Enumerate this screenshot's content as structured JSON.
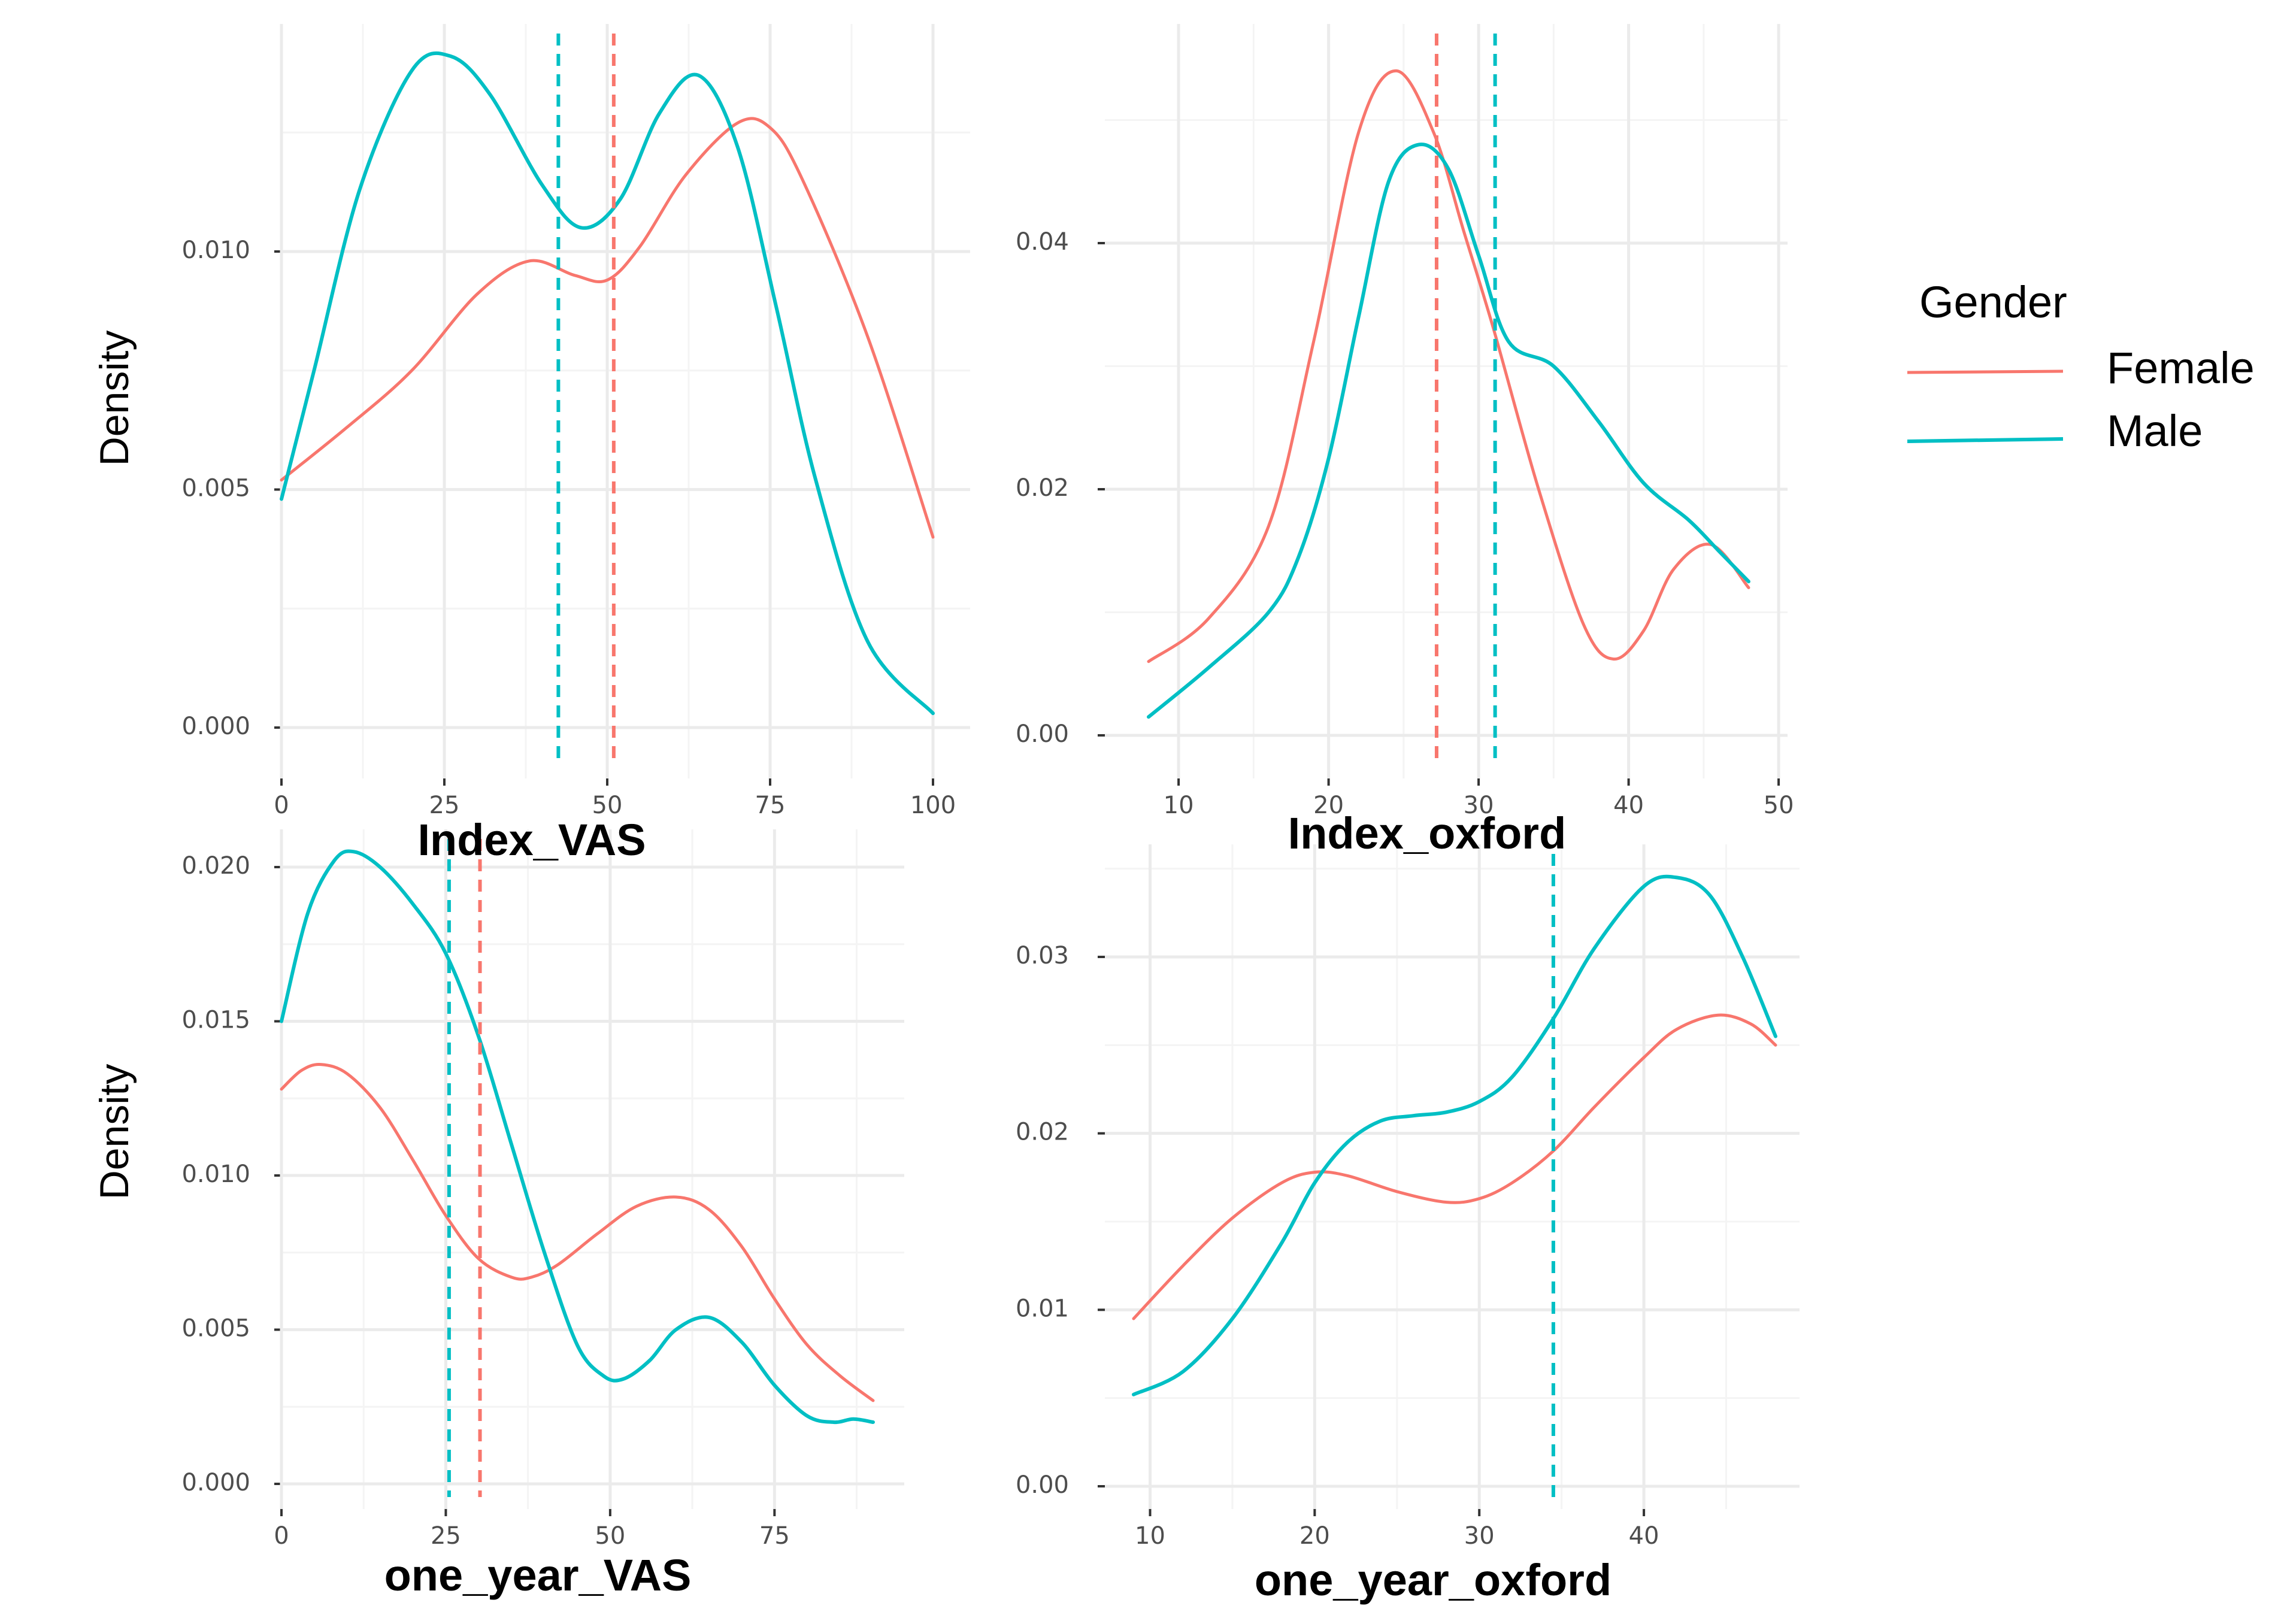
{
  "legend": {
    "title": "Gender",
    "items": [
      {
        "label": "Female",
        "color": "#F8766D"
      },
      {
        "label": "Male",
        "color": "#00BFC4"
      }
    ]
  },
  "chart_data": [
    {
      "type": "line",
      "title": "",
      "xlabel": "Index_VAS",
      "ylabel": "Density",
      "xlim": [
        0,
        100
      ],
      "ylim": [
        0.0,
        0.0143
      ],
      "xticks": [
        0,
        25,
        50,
        75,
        100
      ],
      "xtick_labels": [
        "0",
        "25",
        "50",
        "75",
        "100"
      ],
      "yticks": [
        0.0,
        0.005,
        0.01
      ],
      "ytick_labels": [
        "0.000",
        "0.005",
        "0.010"
      ],
      "grid": true,
      "series": [
        {
          "name": "Female",
          "color": "#F8766D",
          "x": [
            0,
            10,
            20,
            30,
            38,
            45,
            50,
            55,
            62,
            70,
            75,
            80,
            90,
            100
          ],
          "y": [
            0.0052,
            0.0063,
            0.0075,
            0.0091,
            0.0098,
            0.0095,
            0.0094,
            0.0101,
            0.0116,
            0.0127,
            0.0126,
            0.0115,
            0.0082,
            0.004
          ]
        },
        {
          "name": "Male",
          "color": "#00BFC4",
          "x": [
            0,
            5,
            12,
            20,
            26,
            32,
            40,
            46,
            52,
            58,
            64,
            70,
            76,
            82,
            90,
            100
          ],
          "y": [
            0.0048,
            0.0075,
            0.0113,
            0.0138,
            0.0141,
            0.0133,
            0.0114,
            0.0105,
            0.0111,
            0.0129,
            0.0137,
            0.0122,
            0.0088,
            0.0052,
            0.0018,
            0.0003
          ]
        }
      ],
      "vlines": [
        {
          "series": "Male",
          "x": 42.5,
          "color": "#00BFC4"
        },
        {
          "series": "Female",
          "x": 51,
          "color": "#F8766D"
        }
      ]
    },
    {
      "type": "line",
      "title": "",
      "xlabel": "Index_oxford",
      "ylabel": "",
      "xlim": [
        8,
        48
      ],
      "ylim": [
        0.0,
        0.056
      ],
      "xticks": [
        10,
        20,
        30,
        40,
        50
      ],
      "xtick_labels": [
        "10",
        "20",
        "30",
        "40",
        "50"
      ],
      "yticks": [
        0.0,
        0.02,
        0.04
      ],
      "ytick_labels": [
        "0.00",
        "0.02",
        "0.04"
      ],
      "grid": true,
      "series": [
        {
          "name": "Female",
          "color": "#F8766D",
          "x": [
            8,
            12,
            16,
            19,
            22,
            24.5,
            27,
            29,
            31,
            34,
            37,
            39,
            41,
            43,
            45.5,
            48
          ],
          "y": [
            0.006,
            0.0095,
            0.017,
            0.032,
            0.049,
            0.054,
            0.049,
            0.041,
            0.033,
            0.02,
            0.009,
            0.0062,
            0.0085,
            0.0135,
            0.0155,
            0.012
          ]
        },
        {
          "name": "Male",
          "color": "#00BFC4",
          "x": [
            8,
            12,
            16,
            18,
            20,
            22,
            24,
            26,
            28,
            30,
            32,
            35,
            38,
            41,
            44,
            46,
            48
          ],
          "y": [
            0.0015,
            0.0055,
            0.01,
            0.0145,
            0.0225,
            0.034,
            0.045,
            0.048,
            0.046,
            0.039,
            0.032,
            0.03,
            0.0255,
            0.0205,
            0.0175,
            0.015,
            0.0125
          ]
        }
      ],
      "vlines": [
        {
          "series": "Female",
          "x": 27.2,
          "color": "#F8766D"
        },
        {
          "series": "Male",
          "x": 31.1,
          "color": "#00BFC4"
        }
      ]
    },
    {
      "type": "line",
      "title": "",
      "xlabel": "one_year_VAS",
      "ylabel": "Density",
      "xlim": [
        0,
        90
      ],
      "ylim": [
        0.0,
        0.0205
      ],
      "xticks": [
        0,
        25,
        50,
        75
      ],
      "xtick_labels": [
        "0",
        "25",
        "50",
        "75"
      ],
      "yticks": [
        0.0,
        0.005,
        0.01,
        0.015,
        0.02
      ],
      "ytick_labels": [
        "0.000",
        "0.005",
        "0.010",
        "0.015",
        "0.020"
      ],
      "grid": true,
      "series": [
        {
          "name": "Female",
          "color": "#F8766D",
          "x": [
            0,
            3,
            6,
            10,
            15,
            20,
            25,
            30,
            35,
            38,
            42,
            48,
            54,
            60,
            65,
            70,
            75,
            80,
            85,
            90
          ],
          "y": [
            0.0128,
            0.0134,
            0.0136,
            0.0133,
            0.0122,
            0.0105,
            0.0087,
            0.0073,
            0.0067,
            0.0067,
            0.0071,
            0.0081,
            0.009,
            0.0093,
            0.0089,
            0.0077,
            0.006,
            0.0045,
            0.0035,
            0.0027
          ]
        },
        {
          "name": "Male",
          "color": "#00BFC4",
          "x": [
            0,
            4,
            8,
            11,
            15,
            20,
            25,
            30,
            35,
            40,
            45,
            49,
            52,
            56,
            60,
            65,
            70,
            75,
            80,
            84,
            87,
            90
          ],
          "y": [
            0.015,
            0.0185,
            0.0202,
            0.0205,
            0.02,
            0.0188,
            0.0172,
            0.0145,
            0.011,
            0.0075,
            0.0045,
            0.0035,
            0.0034,
            0.004,
            0.005,
            0.0054,
            0.0046,
            0.0032,
            0.0022,
            0.002,
            0.0021,
            0.002
          ]
        }
      ],
      "vlines": [
        {
          "series": "Male",
          "x": 25.5,
          "color": "#00BFC4"
        },
        {
          "series": "Female",
          "x": 30.2,
          "color": "#F8766D"
        }
      ]
    },
    {
      "type": "line",
      "title": "",
      "xlabel": "one_year_oxford",
      "ylabel": "",
      "xlim": [
        9,
        48
      ],
      "ylim": [
        0.0,
        0.0345
      ],
      "xticks": [
        10,
        20,
        30,
        40
      ],
      "xtick_labels": [
        "10",
        "20",
        "30",
        "40"
      ],
      "yticks": [
        0.0,
        0.01,
        0.02,
        0.03
      ],
      "ytick_labels": [
        "0.00",
        "0.01",
        "0.02",
        "0.03"
      ],
      "grid": true,
      "series": [
        {
          "name": "Female",
          "color": "#F8766D",
          "x": [
            9,
            12,
            15,
            18,
            20,
            22,
            25,
            28,
            30,
            32,
            34.5,
            37,
            40,
            42,
            44.5,
            46.5,
            48
          ],
          "y": [
            0.0095,
            0.0125,
            0.0152,
            0.0172,
            0.0178,
            0.0176,
            0.0167,
            0.0161,
            0.0163,
            0.0172,
            0.019,
            0.0215,
            0.0243,
            0.0259,
            0.0267,
            0.0262,
            0.025
          ]
        },
        {
          "name": "Male",
          "color": "#00BFC4",
          "x": [
            9,
            12,
            15,
            18,
            20,
            22,
            24,
            26,
            28,
            30,
            32,
            34.5,
            37,
            40,
            42,
            44,
            46,
            48
          ],
          "y": [
            0.0052,
            0.0065,
            0.0095,
            0.0138,
            0.0172,
            0.0195,
            0.0207,
            0.021,
            0.0212,
            0.0218,
            0.0232,
            0.0265,
            0.0305,
            0.034,
            0.0345,
            0.0335,
            0.03,
            0.0255
          ]
        }
      ],
      "vlines": [
        {
          "series": "Male",
          "x": 34.5,
          "color": "#00BFC4"
        }
      ]
    }
  ]
}
